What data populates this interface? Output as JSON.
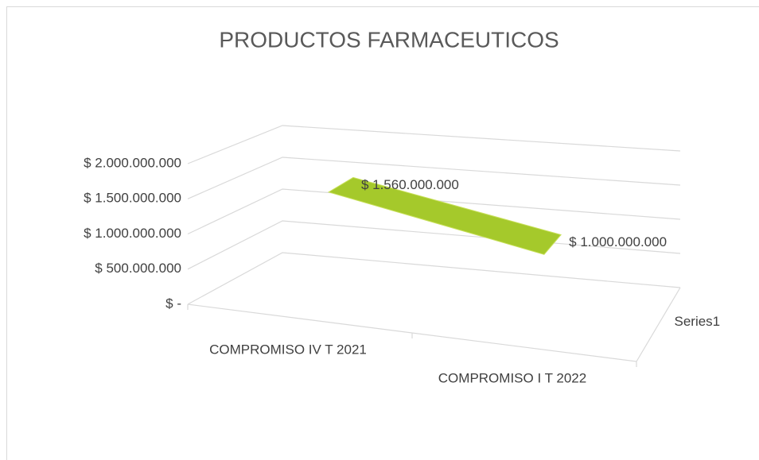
{
  "chart_data": {
    "type": "line3d",
    "title": "PRODUCTOS FARMACEUTICOS",
    "categories": [
      "COMPROMISO IV T 2021",
      "COMPROMISO I T 2022"
    ],
    "series": [
      {
        "name": "Series1",
        "color": "#a5c92b",
        "values": [
          1560000000,
          1000000000
        ],
        "value_labels": [
          "$ 1.560.000.000",
          "$ 1.000.000.000"
        ]
      }
    ],
    "ylim": [
      0,
      2000000000
    ],
    "yticks": [
      {
        "value": 0,
        "label": "$ -"
      },
      {
        "value": 500000000,
        "label": "$ 500.000.000"
      },
      {
        "value": 1000000000,
        "label": "$ 1.000.000.000"
      },
      {
        "value": 1500000000,
        "label": "$ 1.500.000.000"
      },
      {
        "value": 2000000000,
        "label": "$ 2.000.000.000"
      }
    ],
    "grid": true
  }
}
